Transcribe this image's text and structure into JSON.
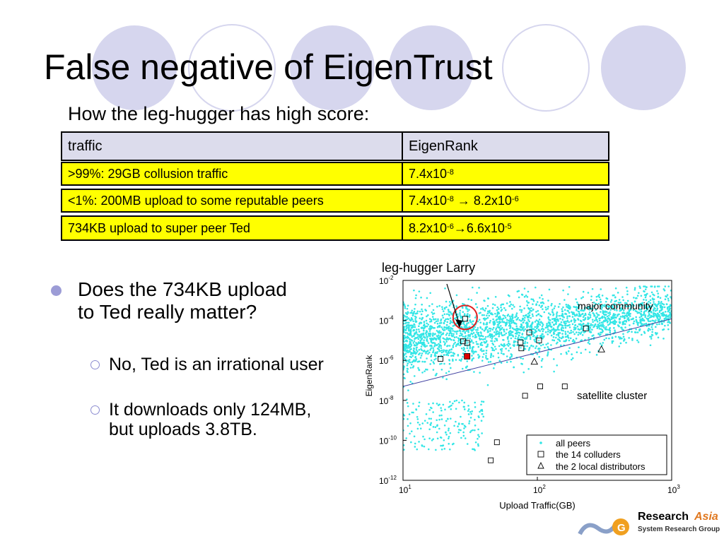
{
  "slide": {
    "title": "False negative of EigenTrust",
    "subtitle": "How the leg-hugger has high score:"
  },
  "table": {
    "headers": [
      "traffic",
      "EigenRank"
    ],
    "rows": [
      {
        "traffic": ">99%: 29GB collusion traffic",
        "rank_a_base": "7.4x10",
        "rank_a_exp": "-8",
        "arrow": "",
        "rank_b_base": "",
        "rank_b_exp": ""
      },
      {
        "traffic": "<1%: 200MB upload to some reputable peers",
        "rank_a_base": "7.4x10",
        "rank_a_exp": "-8",
        "arrow": "→",
        "rank_b_base": "8.2x10",
        "rank_b_exp": "-6"
      },
      {
        "traffic": "734KB upload to super peer Ted",
        "rank_a_base": "8.2x10",
        "rank_a_exp": "-6",
        "arrow": "→",
        "rank_b_base": "6.6x10",
        "rank_b_exp": "-5"
      }
    ]
  },
  "bullets": {
    "main": "Does the 734KB upload to Ted really matter?",
    "sub": [
      "No, Ted is an irrational user",
      "It downloads only 124MB, but uploads 3.8TB."
    ]
  },
  "chart_data": {
    "type": "scatter",
    "xlabel": "Upload Traffic(GB)",
    "ylabel": "EigenRank",
    "x_scale": "log",
    "y_scale": "log",
    "xlim": [
      10,
      1000
    ],
    "ylim": [
      1e-12,
      0.01
    ],
    "x_ticks": [
      {
        "base": "10",
        "exp": "1"
      },
      {
        "base": "10",
        "exp": "2"
      },
      {
        "base": "10",
        "exp": "3"
      }
    ],
    "y_ticks": [
      {
        "base": "10",
        "exp": "-2"
      },
      {
        "base": "10",
        "exp": "-4"
      },
      {
        "base": "10",
        "exp": "-6"
      },
      {
        "base": "10",
        "exp": "-8"
      },
      {
        "base": "10",
        "exp": "-10"
      },
      {
        "base": "10",
        "exp": "-12"
      }
    ],
    "legend_position": "bottom-right",
    "legend": [
      "all peers",
      "the 14 colluders",
      "the 2 local distributors"
    ],
    "annotations": {
      "pointer_label": "leg-hugger Larry",
      "region_1": "major community",
      "region_2": "satellite cluster"
    },
    "series": [
      {
        "name": "all peers",
        "marker": "dot",
        "color": "#33e6e6",
        "description_points": "dense cloud: x 10 to 1000, y roughly 1e-9 to 1e-2"
      },
      {
        "name": "the 14 colluders",
        "marker": "square",
        "points": [
          [
            29,
            0.00012
          ],
          [
            28,
            9e-06
          ],
          [
            30,
            7.5e-06
          ],
          [
            19,
            1.2e-06
          ],
          [
            75,
            8e-06
          ],
          [
            76,
            4e-06
          ],
          [
            87,
            2.5e-05
          ],
          [
            103,
            1e-05
          ],
          [
            230,
            4e-05
          ],
          [
            105,
            5e-08
          ],
          [
            160,
            5e-08
          ],
          [
            50,
            8e-11
          ],
          [
            45,
            1e-11
          ],
          [
            81,
            1.7e-08
          ]
        ]
      },
      {
        "name": "the 2 local distributors",
        "marker": "triangle",
        "points": [
          [
            95,
            8.5e-07
          ],
          [
            300,
            3.5e-06
          ]
        ]
      }
    ],
    "highlight": {
      "name": "leg-hugger Larry",
      "x": 30,
      "y": 1.6e-06,
      "color": "#dd0000"
    },
    "fit_line": {
      "x": [
        10,
        1000
      ],
      "y": [
        5e-08,
        0.00012
      ]
    },
    "colors": {
      "cloud": "#33e6e6",
      "circle": "#e02020",
      "fit": "#4040a0"
    }
  },
  "logo": {
    "text_1": "Research",
    "text_2": "Asia",
    "text_3": "System Research Group"
  }
}
